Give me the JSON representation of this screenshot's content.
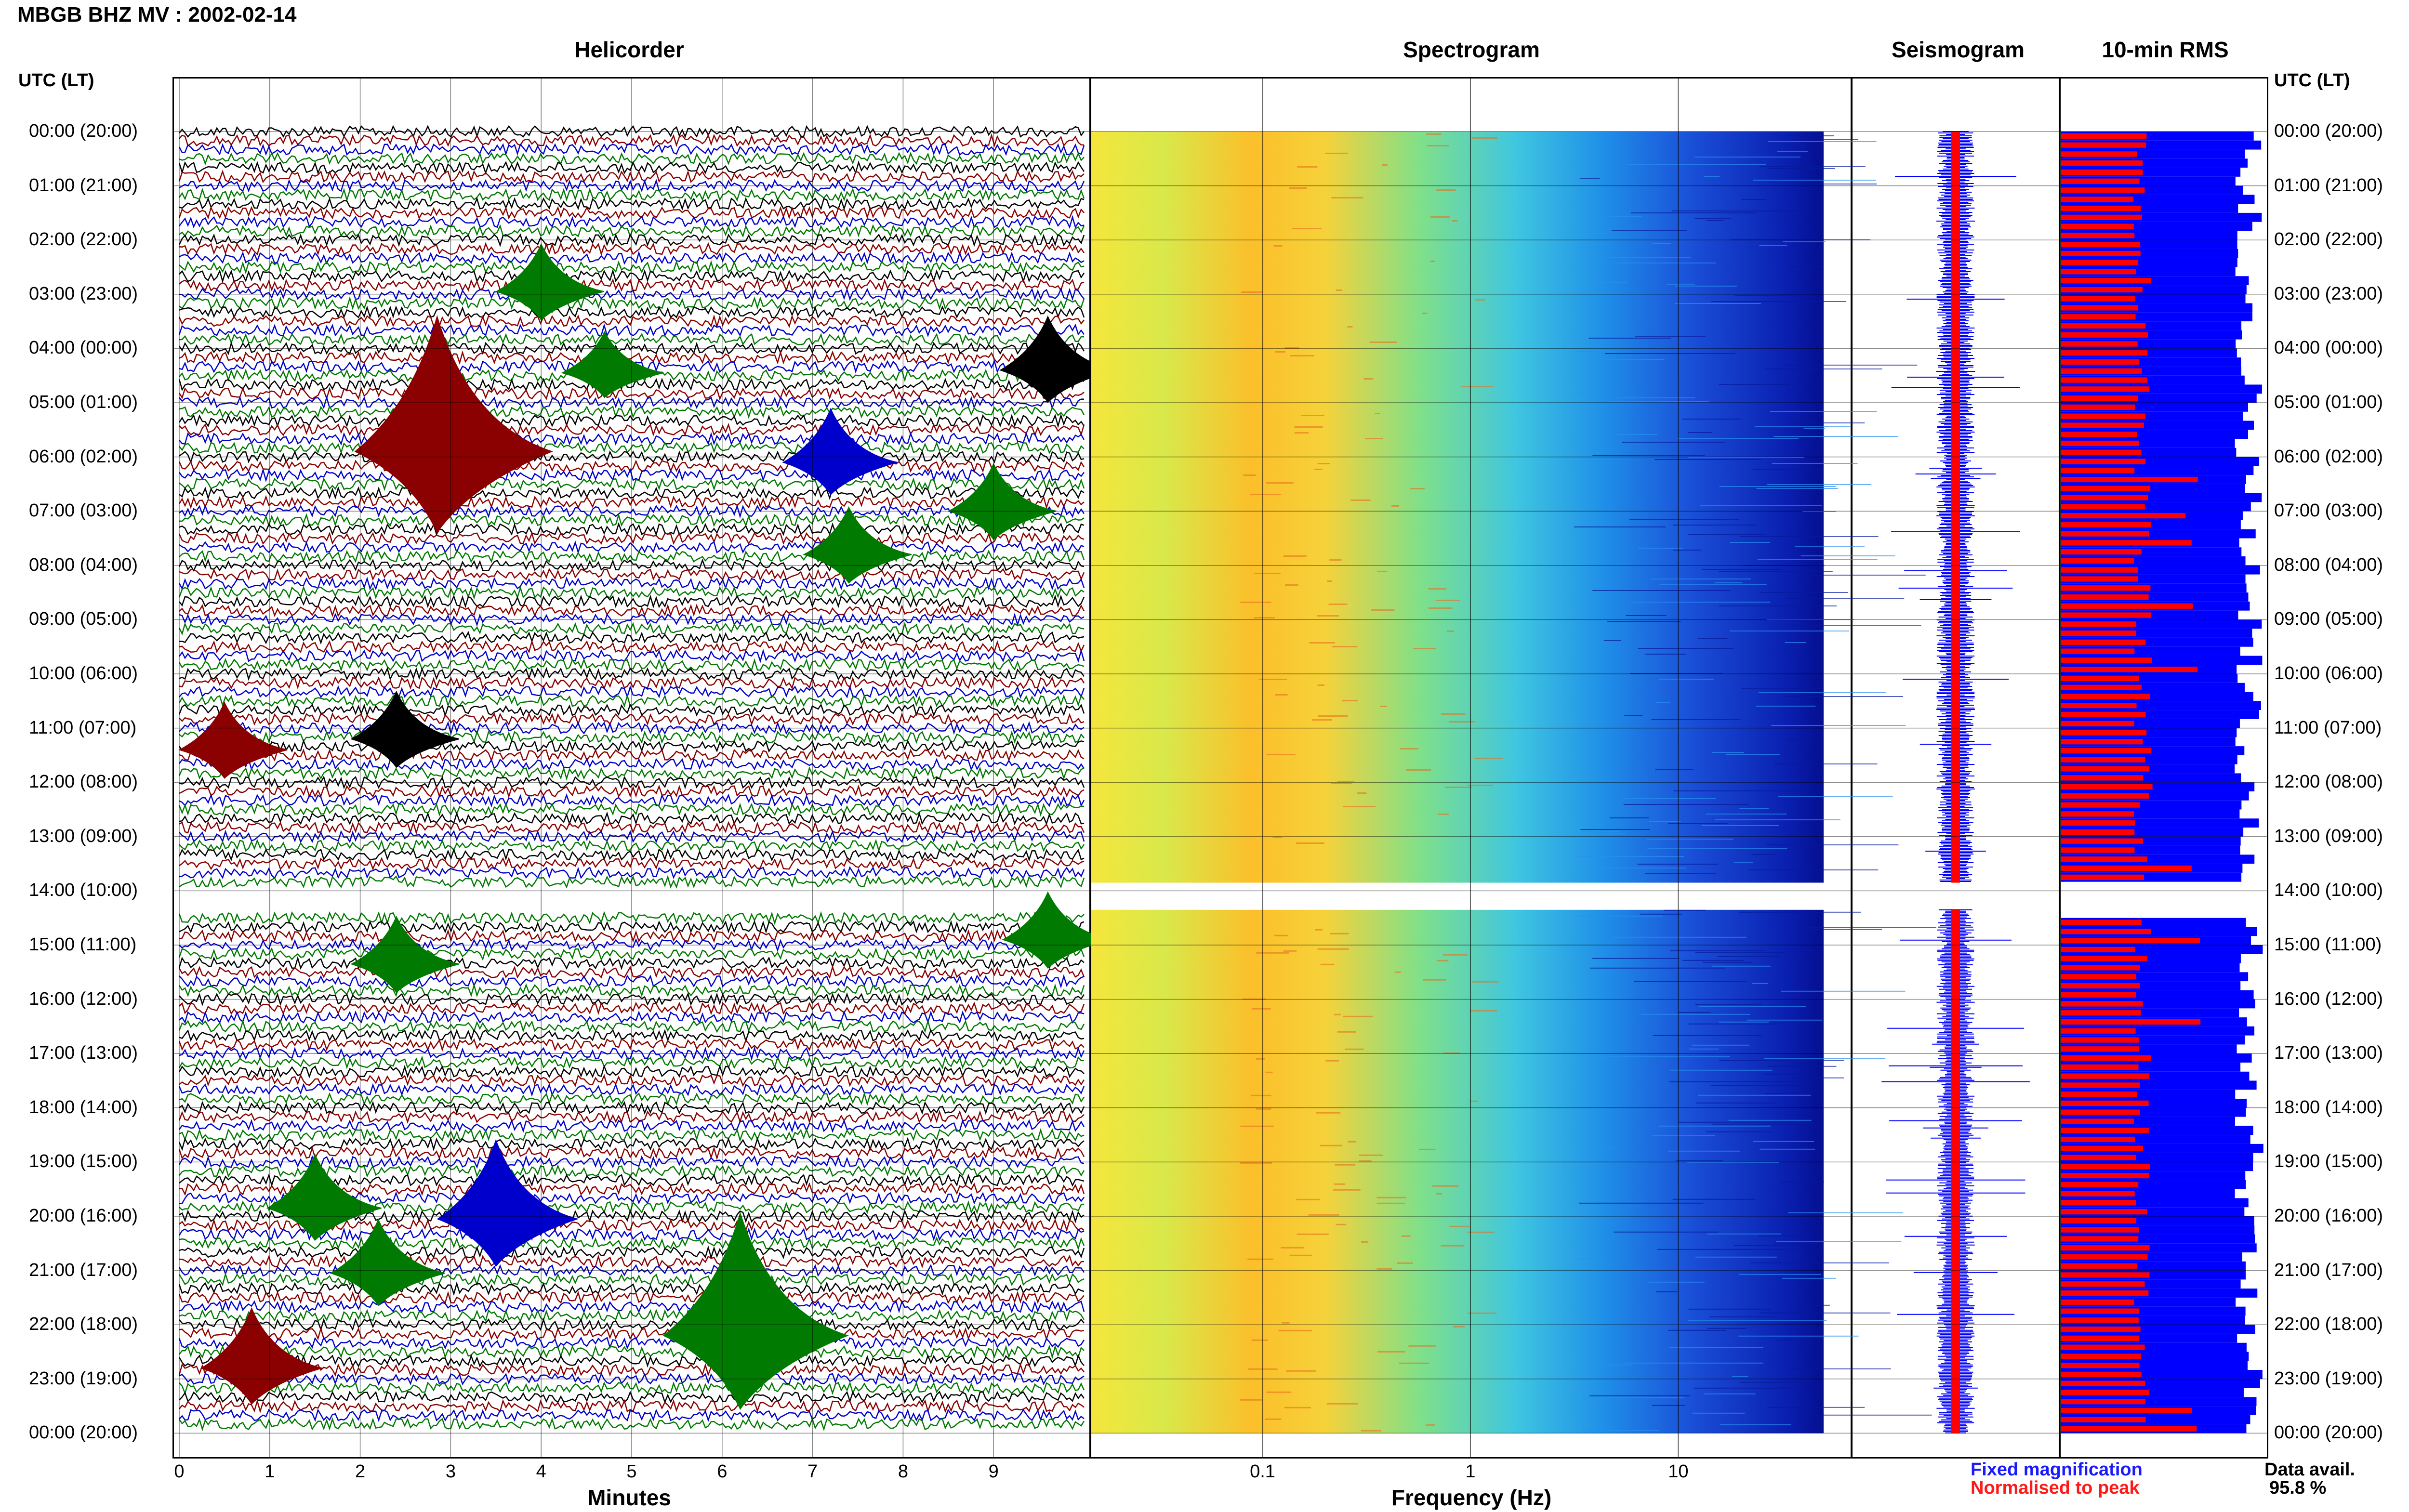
{
  "header": {
    "title": "MBGB BHZ MV : 2002-02-14",
    "utc_label": "UTC (LT)"
  },
  "panels": {
    "helicorder": "Helicorder",
    "spectrogram": "Spectrogram",
    "seismogram": "Seismogram",
    "rms": "10-min RMS"
  },
  "time_labels": [
    "00:00 (20:00)",
    "01:00 (21:00)",
    "02:00 (22:00)",
    "03:00 (23:00)",
    "04:00 (00:00)",
    "05:00 (01:00)",
    "06:00 (02:00)",
    "07:00 (03:00)",
    "08:00 (04:00)",
    "09:00 (05:00)",
    "10:00 (06:00)",
    "11:00 (07:00)",
    "12:00 (08:00)",
    "13:00 (09:00)",
    "14:00 (10:00)",
    "15:00 (11:00)",
    "16:00 (12:00)",
    "17:00 (13:00)",
    "18:00 (14:00)",
    "19:00 (15:00)",
    "20:00 (16:00)",
    "21:00 (17:00)",
    "22:00 (18:00)",
    "23:00 (19:00)",
    "00:00 (20:00)"
  ],
  "legend": {
    "fixed": "Fixed magnification",
    "normalised": "Normalised to peak",
    "avail_label": "Data avail.",
    "avail_value": "95.8 %"
  },
  "colors": {
    "trace_black": "#000000",
    "trace_red": "#8b0000",
    "trace_blue": "#0000cd",
    "trace_green": "#007a00",
    "fixed": "#0000ff",
    "normalised": "#ff0000"
  },
  "chart_data": [
    {
      "type": "line",
      "title": "Helicorder",
      "xlabel": "Minutes",
      "x_ticks": [
        "0",
        "1",
        "2",
        "3",
        "4",
        "5",
        "6",
        "7",
        "8",
        "9"
      ],
      "xlim": [
        0,
        10
      ],
      "gap_hours": [
        13.85,
        14.35
      ],
      "events": [
        {
          "hour": 5.9,
          "minute": 2.85,
          "amp": 1.0,
          "color": "red"
        },
        {
          "hour": 6.1,
          "minute": 7.2,
          "amp": 0.35,
          "color": "blue"
        },
        {
          "hour": 2.95,
          "minute": 4.0,
          "amp": 0.3,
          "color": "green"
        },
        {
          "hour": 4.45,
          "minute": 4.7,
          "amp": 0.25,
          "color": "green"
        },
        {
          "hour": 4.4,
          "minute": 9.6,
          "amp": 0.35,
          "color": "black"
        },
        {
          "hour": 7.0,
          "minute": 9.0,
          "amp": 0.3,
          "color": "green"
        },
        {
          "hour": 7.8,
          "minute": 7.4,
          "amp": 0.3,
          "color": "green"
        },
        {
          "hour": 11.2,
          "minute": 2.4,
          "amp": 0.3,
          "color": "black"
        },
        {
          "hour": 11.4,
          "minute": 0.5,
          "amp": 0.3,
          "color": "red"
        },
        {
          "hour": 19.85,
          "minute": 1.5,
          "amp": 0.35,
          "color": "green"
        },
        {
          "hour": 20.05,
          "minute": 3.5,
          "amp": 0.55,
          "color": "blue"
        },
        {
          "hour": 21.05,
          "minute": 2.2,
          "amp": 0.35,
          "color": "green"
        },
        {
          "hour": 22.2,
          "minute": 6.2,
          "amp": 0.9,
          "color": "green"
        },
        {
          "hour": 22.8,
          "minute": 0.8,
          "amp": 0.4,
          "color": "red"
        },
        {
          "hour": 15.35,
          "minute": 2.4,
          "amp": 0.3,
          "color": "green"
        },
        {
          "hour": 14.9,
          "minute": 9.6,
          "amp": 0.3,
          "color": "green"
        }
      ]
    },
    {
      "type": "heatmap",
      "title": "Spectrogram",
      "xlabel": "Frequency (Hz)",
      "x_ticks": [
        "0.1",
        "1",
        "10"
      ],
      "x_scale": "log",
      "xlim": [
        0.015,
        50
      ]
    },
    {
      "type": "bar",
      "title": "Seismogram",
      "series": [
        {
          "name": "Fixed magnification",
          "color": "blue"
        },
        {
          "name": "Normalised to peak",
          "color": "red"
        }
      ]
    },
    {
      "type": "bar",
      "title": "10-min RMS",
      "series": [
        {
          "name": "Fixed magnification",
          "color": "blue"
        },
        {
          "name": "Normalised to peak",
          "color": "red"
        }
      ]
    }
  ]
}
